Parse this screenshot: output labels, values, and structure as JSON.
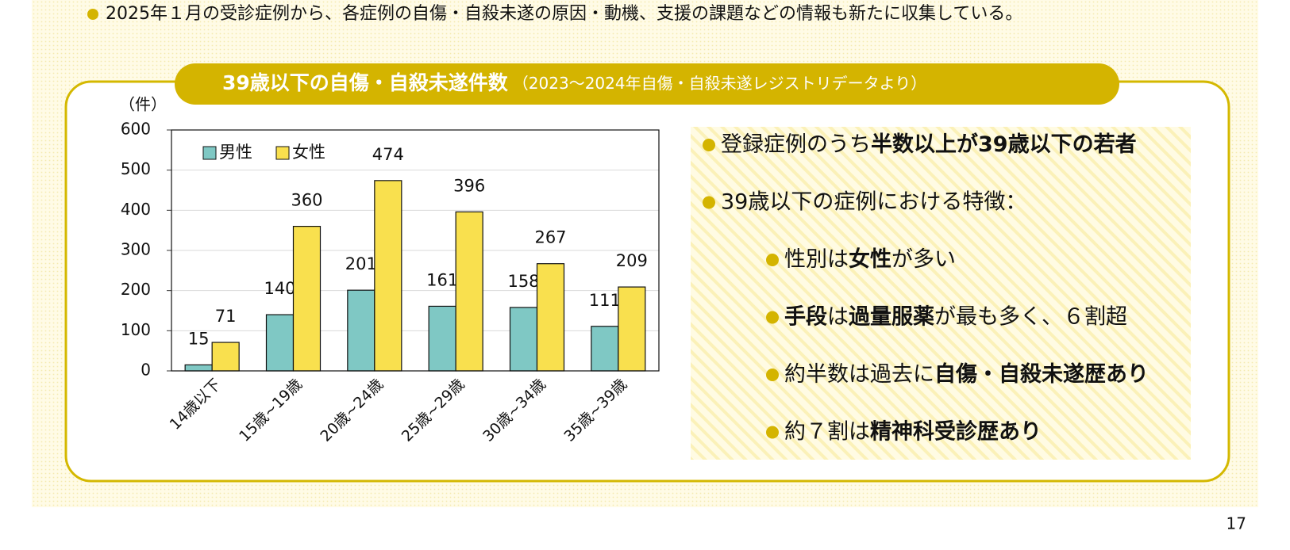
{
  "header": {
    "bullet": "2025年１月の受診症例から、各症例の自傷・自殺未遂の原因・動機、支援の課題などの情報も新たに収集している。"
  },
  "panel": {
    "title": "39歳以下の自傷・自殺未遂件数",
    "source": "（2023～2024年自傷・自殺未遂レジストリデータより）"
  },
  "chart_data": {
    "type": "bar",
    "unit": "（件）",
    "categories": [
      "14歳以下",
      "15歳~19歳",
      "20歳~24歳",
      "25歳~29歳",
      "30歳~34歳",
      "35歳~39歳"
    ],
    "series": [
      {
        "name": "男性",
        "color": "#7fc8c4",
        "values": [
          15,
          140,
          201,
          161,
          158,
          111
        ]
      },
      {
        "name": "女性",
        "color": "#f9e04e",
        "values": [
          71,
          360,
          474,
          396,
          267,
          209
        ]
      }
    ],
    "ylim": [
      0,
      600
    ],
    "yticks": [
      0,
      100,
      200,
      300,
      400,
      500,
      600
    ],
    "grid": true,
    "legend": "top-left"
  },
  "notes": [
    {
      "segments": [
        {
          "text": "登録症例のうち",
          "bold": false
        },
        {
          "text": "半数以上が39歳以下の若者",
          "bold": true
        }
      ]
    },
    {
      "segments": [
        {
          "text": "39歳以下の症例における特徴：",
          "bold": false
        }
      ],
      "children": [
        {
          "segments": [
            {
              "text": "性別は",
              "bold": false
            },
            {
              "text": "女性",
              "bold": true
            },
            {
              "text": "が多い",
              "bold": false
            }
          ]
        },
        {
          "segments": [
            {
              "text": "手段",
              "bold": true
            },
            {
              "text": "は",
              "bold": false
            },
            {
              "text": "過量服薬",
              "bold": true
            },
            {
              "text": "が最も多く、６割超",
              "bold": false
            }
          ]
        },
        {
          "segments": [
            {
              "text": "約半数は過去に",
              "bold": false
            },
            {
              "text": "自傷・自殺未遂歴あり",
              "bold": true
            }
          ]
        },
        {
          "segments": [
            {
              "text": "約７割は",
              "bold": false
            },
            {
              "text": "精神科受診歴あり",
              "bold": true
            }
          ]
        }
      ]
    }
  ],
  "footer": {
    "page": "17"
  }
}
